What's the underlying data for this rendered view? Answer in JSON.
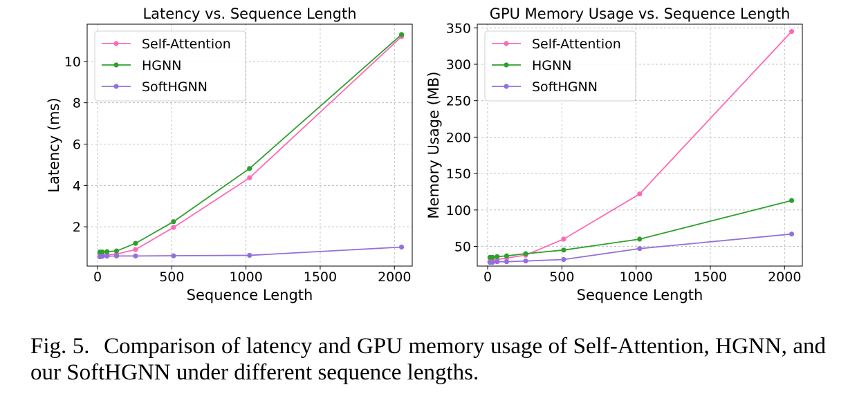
{
  "chart_data": [
    {
      "type": "line",
      "title": "Latency vs. Sequence Length",
      "xlabel": "Sequence Length",
      "ylabel": "Latency (ms)",
      "xlim": [
        -70,
        2120
      ],
      "ylim": [
        0.1,
        11.8
      ],
      "xticks": [
        0,
        500,
        1000,
        1500,
        2000
      ],
      "yticks": [
        2,
        4,
        6,
        8,
        10
      ],
      "grid": true,
      "legend_position": "top-left",
      "x": [
        16,
        32,
        64,
        128,
        256,
        512,
        1024,
        2048
      ],
      "series": [
        {
          "name": "Self-Attention",
          "color": "#ff69b4",
          "values": [
            0.65,
            0.65,
            0.65,
            0.68,
            0.9,
            1.97,
            4.37,
            11.2
          ]
        },
        {
          "name": "HGNN",
          "color": "#2ca02c",
          "values": [
            0.78,
            0.78,
            0.8,
            0.83,
            1.2,
            2.25,
            4.82,
            11.3
          ]
        },
        {
          "name": "SoftHGNN",
          "color": "#9370db",
          "values": [
            0.55,
            0.57,
            0.58,
            0.59,
            0.59,
            0.6,
            0.62,
            1.02
          ]
        }
      ]
    },
    {
      "type": "line",
      "title": "GPU Memory Usage vs. Sequence Length",
      "xlabel": "Sequence Length",
      "ylabel": "Memory Usage (MB)",
      "xlim": [
        -70,
        2120
      ],
      "ylim": [
        23,
        355
      ],
      "xticks": [
        0,
        500,
        1000,
        1500,
        2000
      ],
      "yticks": [
        50,
        100,
        150,
        200,
        250,
        300,
        350
      ],
      "grid": true,
      "legend_position": "top-left",
      "x": [
        16,
        32,
        64,
        128,
        256,
        512,
        1024,
        2048
      ],
      "series": [
        {
          "name": "Self-Attention",
          "color": "#ff69b4",
          "values": [
            30,
            31,
            32,
            34,
            38,
            60,
            122,
            345
          ]
        },
        {
          "name": "HGNN",
          "color": "#2ca02c",
          "values": [
            35,
            35,
            36,
            37,
            40,
            45,
            60,
            113
          ]
        },
        {
          "name": "SoftHGNN",
          "color": "#9370db",
          "values": [
            28,
            28,
            29,
            29,
            30,
            32,
            47,
            67
          ]
        }
      ]
    }
  ],
  "caption": {
    "label": "Fig. 5.",
    "text": "Comparison of latency and GPU memory usage of Self-Attention, HGNN, and our SoftHGNN under different sequence lengths."
  }
}
